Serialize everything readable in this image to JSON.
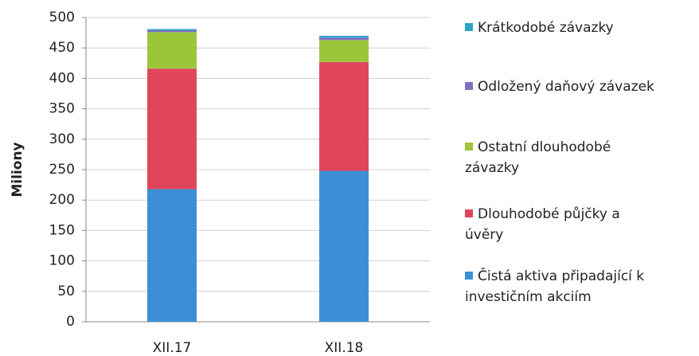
{
  "chart_data": {
    "type": "stacked_bar",
    "y_label": "Miliony",
    "categories": [
      "XII.17",
      "XII.18"
    ],
    "series": [
      {
        "name": "Čistá aktiva připadající k investičním akciím",
        "color": "#3c8fd6",
        "values": [
          218,
          248
        ]
      },
      {
        "name": "Dlouhodobé půjčky a úvěry",
        "color": "#e0465a",
        "values": [
          198,
          179
        ]
      },
      {
        "name": "Ostatní dlouhodobé závazky",
        "color": "#9cc63a",
        "values": [
          60,
          36
        ]
      },
      {
        "name": "Odložený daňový závazek",
        "color": "#7f6fbf",
        "values": [
          3,
          4
        ]
      },
      {
        "name": "Krátkodobé závazky",
        "color": "#2aa6c8",
        "values": [
          2,
          3
        ]
      }
    ],
    "ylim": [
      0,
      500
    ],
    "yticks": [
      0,
      50,
      100,
      150,
      200,
      250,
      300,
      350,
      400,
      450,
      500
    ],
    "grid": true,
    "legend": "right"
  }
}
